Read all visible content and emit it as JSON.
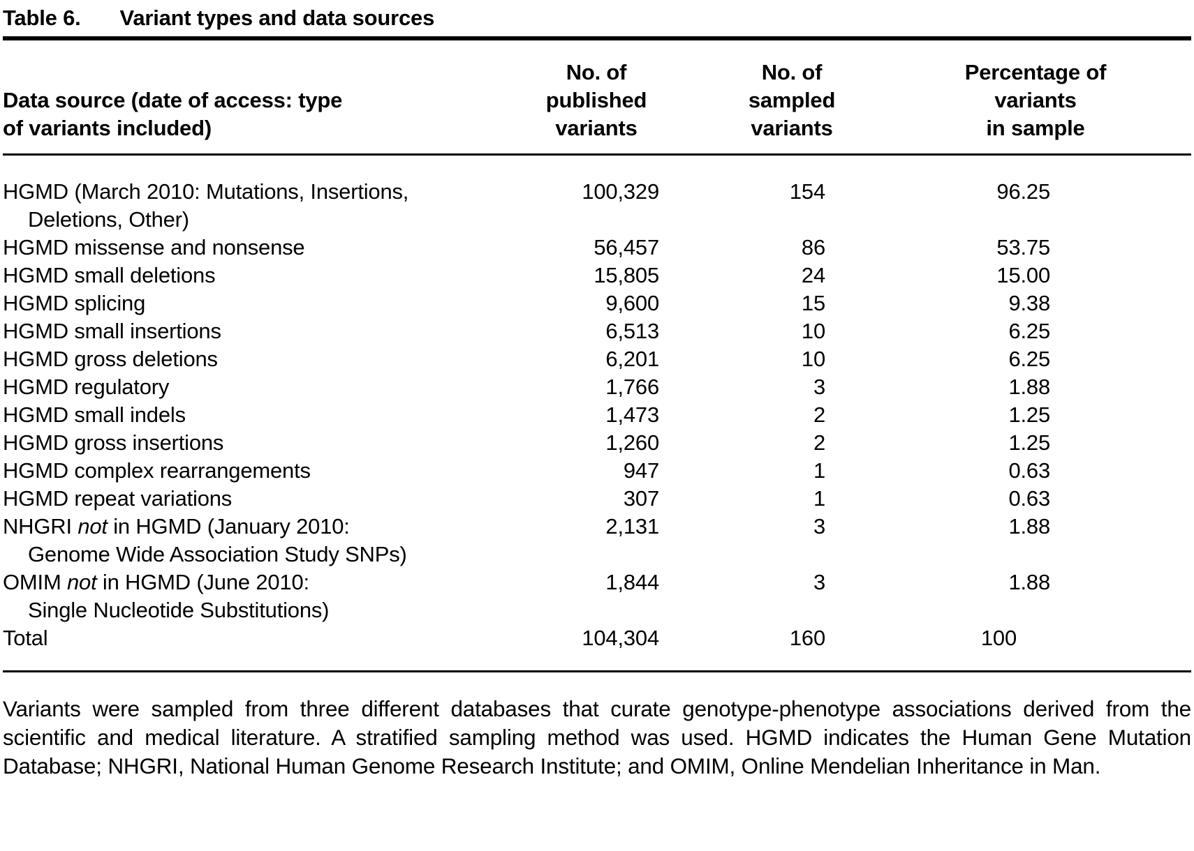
{
  "title": {
    "label": "Table 6.",
    "text": "Variant types and data sources"
  },
  "table": {
    "columns": [
      {
        "header": "Data source (date of access: type\nof variants included)"
      },
      {
        "header": "No. of\npublished\nvariants"
      },
      {
        "header": "No. of\nsampled\nvariants"
      },
      {
        "header": "Percentage of\nvariants\nin sample"
      }
    ],
    "rows": [
      {
        "label": [
          {
            "t": "HGMD (March 2010: Mutations, Insertions,"
          },
          {
            "br": true
          },
          {
            "t": "Deletions, Other)"
          }
        ],
        "published": "100,329",
        "sampled": "154",
        "pct": "96.25"
      },
      {
        "label": [
          {
            "t": "HGMD missense and nonsense"
          }
        ],
        "published": "56,457",
        "sampled": "86",
        "pct": "53.75"
      },
      {
        "label": [
          {
            "t": "HGMD small deletions"
          }
        ],
        "published": "15,805",
        "sampled": "24",
        "pct": "15.00"
      },
      {
        "label": [
          {
            "t": "HGMD splicing"
          }
        ],
        "published": "9,600",
        "sampled": "15",
        "pct": "9.38"
      },
      {
        "label": [
          {
            "t": "HGMD small insertions"
          }
        ],
        "published": "6,513",
        "sampled": "10",
        "pct": "6.25"
      },
      {
        "label": [
          {
            "t": "HGMD gross deletions"
          }
        ],
        "published": "6,201",
        "sampled": "10",
        "pct": "6.25"
      },
      {
        "label": [
          {
            "t": "HGMD regulatory"
          }
        ],
        "published": "1,766",
        "sampled": "3",
        "pct": "1.88"
      },
      {
        "label": [
          {
            "t": "HGMD small indels"
          }
        ],
        "published": "1,473",
        "sampled": "2",
        "pct": "1.25"
      },
      {
        "label": [
          {
            "t": "HGMD gross insertions"
          }
        ],
        "published": "1,260",
        "sampled": "2",
        "pct": "1.25"
      },
      {
        "label": [
          {
            "t": "HGMD complex rearrangements"
          }
        ],
        "published": "947",
        "sampled": "1",
        "pct": "0.63"
      },
      {
        "label": [
          {
            "t": "HGMD repeat variations"
          }
        ],
        "published": "307",
        "sampled": "1",
        "pct": "0.63"
      },
      {
        "label": [
          {
            "t": "NHGRI "
          },
          {
            "t": "not",
            "i": true
          },
          {
            "t": " in HGMD (January 2010:"
          },
          {
            "br": true
          },
          {
            "t": "Genome Wide Association Study SNPs)"
          }
        ],
        "published": "2,131",
        "sampled": "3",
        "pct": "1.88"
      },
      {
        "label": [
          {
            "t": "OMIM "
          },
          {
            "t": "not",
            "i": true
          },
          {
            "t": " in HGMD (June 2010:"
          },
          {
            "br": true
          },
          {
            "t": "Single Nucleotide Substitutions)"
          }
        ],
        "published": "1,844",
        "sampled": "3",
        "pct": "1.88"
      },
      {
        "label": [
          {
            "t": "Total"
          }
        ],
        "published": "104,304",
        "sampled": "160",
        "pct": "100"
      }
    ]
  },
  "footnote": "Variants were sampled from three different databases that curate genotype-phenotype associations derived from the scientific and medical literature. A stratified sampling method was used. HGMD indicates the Human Gene Mutation Database; NHGRI, National Human Genome Research Institute; and OMIM, Online Mendelian Inheritance in Man.",
  "colors": {
    "text": "#000000",
    "background": "#ffffff",
    "rule": "#000000"
  }
}
